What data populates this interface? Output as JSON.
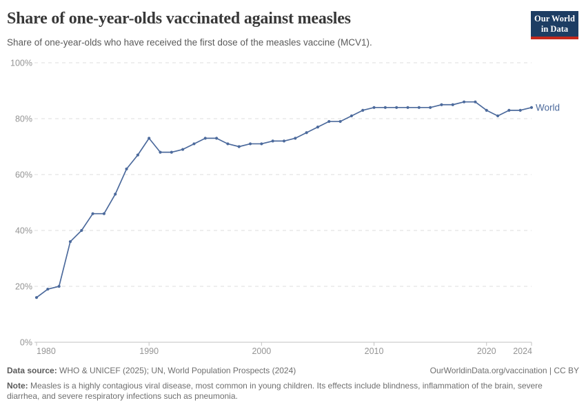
{
  "header": {
    "title": "Share of one-year-olds vaccinated against measles",
    "subtitle": "Share of one-year-olds who have received the first dose of the measles vaccine (MCV1).",
    "logo": {
      "line1": "Our World",
      "line2": "in Data"
    }
  },
  "theme": {
    "line_color": "#4c6a9c",
    "grid_color": "#dcdcdc",
    "axis_color": "#c2c2c2",
    "tick_label_color": "#949494",
    "logo_bg": "#1d3d63",
    "logo_accent": "#c5281c"
  },
  "chart_data": {
    "type": "line",
    "title": "Share of one-year-olds vaccinated against measles",
    "xlabel": "",
    "ylabel": "",
    "ylim": [
      0,
      100
    ],
    "grid": "horizontal-dashed",
    "legend": "series-end-label",
    "yticks": [
      0,
      20,
      40,
      60,
      80,
      100
    ],
    "ytick_labels": [
      "0%",
      "20%",
      "40%",
      "60%",
      "80%",
      "100%"
    ],
    "xticks": [
      1980,
      1990,
      2000,
      2010,
      2020,
      2024
    ],
    "x": [
      1980,
      1981,
      1982,
      1983,
      1984,
      1985,
      1986,
      1987,
      1988,
      1989,
      1990,
      1991,
      1992,
      1993,
      1994,
      1995,
      1996,
      1997,
      1998,
      1999,
      2000,
      2001,
      2002,
      2003,
      2004,
      2005,
      2006,
      2007,
      2008,
      2009,
      2010,
      2011,
      2012,
      2013,
      2014,
      2015,
      2016,
      2017,
      2018,
      2019,
      2020,
      2021,
      2022,
      2023,
      2024
    ],
    "series": [
      {
        "name": "World",
        "color": "#4c6a9c",
        "values": [
          16,
          19,
          20,
          36,
          40,
          46,
          46,
          53,
          62,
          67,
          73,
          68,
          68,
          69,
          71,
          73,
          73,
          71,
          70,
          71,
          71,
          72,
          72,
          73,
          75,
          77,
          79,
          79,
          81,
          83,
          84,
          84,
          84,
          84,
          84,
          84,
          85,
          85,
          86,
          86,
          83,
          81,
          83,
          83,
          84
        ]
      }
    ]
  },
  "footer": {
    "source_label": "Data source:",
    "source_text": "WHO & UNICEF (2025); UN, World Population Prospects (2024)",
    "link_text": "OurWorldinData.org/vaccination | CC BY",
    "note_label": "Note:",
    "note_text": "Measles is a highly contagious viral disease, most common in young children. Its effects include blindness, inflammation of the brain, severe diarrhea, and severe respiratory infections such as pneumonia."
  }
}
